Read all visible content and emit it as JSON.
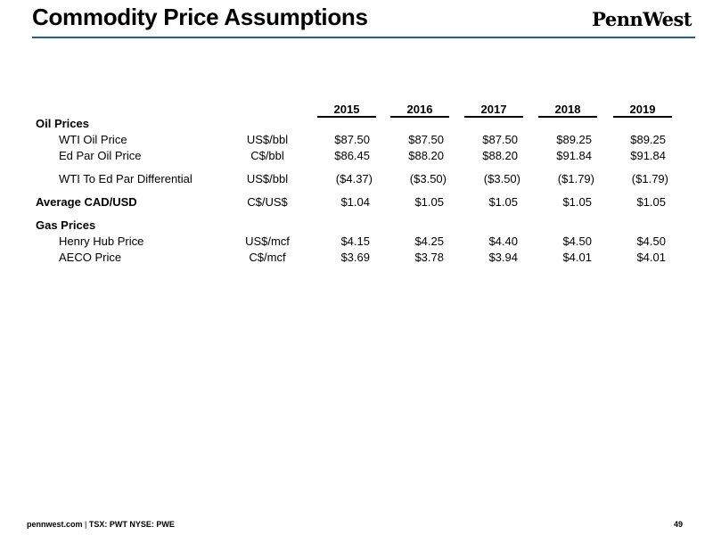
{
  "header": {
    "title": "Commodity Price Assumptions",
    "logo_text": "PennWest"
  },
  "table": {
    "years": [
      "2015",
      "2016",
      "2017",
      "2018",
      "2019"
    ],
    "sections": {
      "oil": "Oil Prices",
      "cad": "Average CAD/USD",
      "gas": "Gas Prices"
    },
    "rows": [
      {
        "label": "WTI Oil Price",
        "unit": "US$/bbl",
        "values": [
          "$87.50",
          "$87.50",
          "$87.50",
          "$89.25",
          "$89.25"
        ]
      },
      {
        "label": "Ed Par Oil Price",
        "unit": "C$/bbl",
        "values": [
          "$86.45",
          "$88.20",
          "$88.20",
          "$91.84",
          "$91.84"
        ]
      },
      {
        "label": "WTI To Ed Par Differential",
        "unit": "US$/bbl",
        "values": [
          "($4.37)",
          "($3.50)",
          "($3.50)",
          "($1.79)",
          "($1.79)"
        ]
      },
      {
        "label": "",
        "unit": "C$/US$",
        "values": [
          "$1.04",
          "$1.05",
          "$1.05",
          "$1.05",
          "$1.05"
        ]
      },
      {
        "label": "Henry Hub Price",
        "unit": "US$/mcf",
        "values": [
          "$4.15",
          "$4.25",
          "$4.40",
          "$4.50",
          "$4.50"
        ]
      },
      {
        "label": "AECO Price",
        "unit": "C$/mcf",
        "values": [
          "$3.69",
          "$3.78",
          "$3.94",
          "$4.01",
          "$4.01"
        ]
      }
    ]
  },
  "footer": {
    "site": "pennwest.com",
    "separator": " | ",
    "tickers": "TSX: PWT  NYSE: PWE",
    "page_number": "49"
  },
  "colors": {
    "title_rule": "#1f5fa8"
  }
}
